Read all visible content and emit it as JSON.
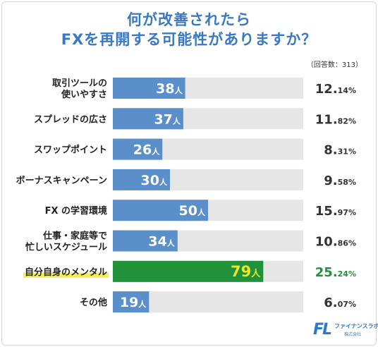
{
  "title_line1": "何が改善されたら",
  "title_line2": "FXを再開する可能性がありますか？",
  "respondents": "（回答数：313）",
  "logo": {
    "mark": "FL",
    "name": "ファイナンスラボ",
    "sub": "株式会社"
  },
  "colors": {
    "bar": "#5b8fc9",
    "highlight_bar": "#21913a",
    "highlight_text": "#e6e62a",
    "track": "#e6e6e6",
    "title": "#3a78c1"
  },
  "chart_data": {
    "type": "bar",
    "orientation": "horizontal",
    "title": "何が改善されたら FXを再開する可能性がありますか？",
    "xlim": [
      0,
      100
    ],
    "categories": [
      [
        "取引ツールの",
        "使いやすさ"
      ],
      [
        "スプレッドの広さ"
      ],
      [
        "スワップポイント"
      ],
      [
        "ボーナスキャンペーン"
      ],
      [
        "FX の学習環境"
      ],
      [
        "仕事・家庭等で",
        "忙しいスケジュール"
      ],
      [
        "自分自身のメンタル"
      ],
      [
        "その他"
      ]
    ],
    "values": [
      38,
      37,
      26,
      30,
      50,
      34,
      79,
      19
    ],
    "value_unit": "人",
    "percent_int": [
      "12.",
      "11.",
      "8.",
      "9.",
      "15.",
      "10.",
      "25.",
      "6."
    ],
    "percent_dec": [
      "14%",
      "82%",
      "31%",
      "58%",
      "97%",
      "86%",
      "24%",
      "07%"
    ],
    "highlight_index": 6
  }
}
